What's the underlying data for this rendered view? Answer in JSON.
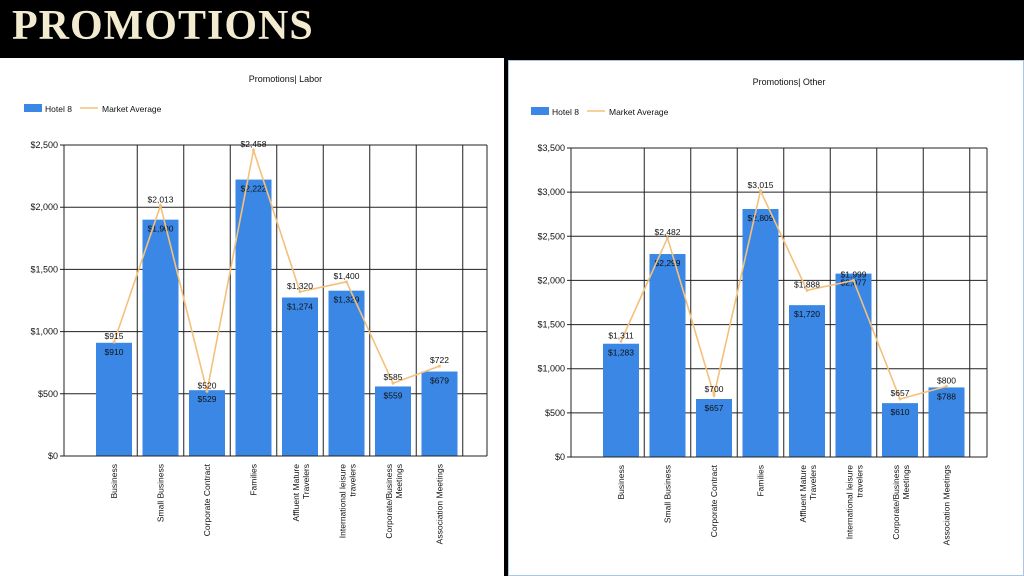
{
  "header": {
    "title": "PROMOTIONS"
  },
  "colors": {
    "bar": "#3a87e5",
    "line": "#f5c07a",
    "grid": "#202020",
    "header_bg": "#000000",
    "title_text": "#f3ebd0"
  },
  "chart_data": [
    {
      "type": "bar",
      "title": "Promotions| Labor",
      "xlabel": "",
      "ylabel": "",
      "ylim": [
        0,
        2500
      ],
      "yticks": [
        0,
        500,
        1000,
        1500,
        2000,
        2500
      ],
      "ytick_labels": [
        "$0",
        "$500",
        "$1,000",
        "$1,500",
        "$2,000",
        "$2,500"
      ],
      "grid": true,
      "legend": "top-left",
      "categories": [
        "Business",
        "Small Business",
        "Corporate Contract",
        "Families",
        "Affluent Mature Travelers",
        "International leisure travelers",
        "Corporate/Business Meetings",
        "Association Meetings"
      ],
      "series": [
        {
          "name": "Hotel 8",
          "kind": "bar",
          "values": [
            910,
            1900,
            529,
            2222,
            1274,
            1329,
            559,
            679
          ],
          "labels": [
            "$910",
            "$1,900",
            "$529",
            "$2,222",
            "$1,274",
            "$1,329",
            "$559",
            "$679"
          ]
        },
        {
          "name": "Market Average",
          "kind": "line",
          "values": [
            915,
            2013,
            520,
            2458,
            1320,
            1400,
            585,
            722
          ],
          "labels": [
            "$915",
            "$2,013",
            "$520",
            "$2,458",
            "$1,320",
            "$1,400",
            "$585",
            "$722"
          ]
        }
      ]
    },
    {
      "type": "bar",
      "title": "Promotions| Other",
      "xlabel": "",
      "ylabel": "",
      "ylim": [
        0,
        3500
      ],
      "yticks": [
        0,
        500,
        1000,
        1500,
        2000,
        2500,
        3000,
        3500
      ],
      "ytick_labels": [
        "$0",
        "$500",
        "$1,000",
        "$1,500",
        "$2,000",
        "$2,500",
        "$3,000",
        "$3,500"
      ],
      "grid": true,
      "legend": "top-left",
      "categories": [
        "Business",
        "Small Business",
        "Corporate Contract",
        "Families",
        "Affluent Mature Travelers",
        "International leisure travelers",
        "Corporate/Business Meetings",
        "Association Meetings"
      ],
      "series": [
        {
          "name": "Hotel 8",
          "kind": "bar",
          "values": [
            1283,
            2299,
            657,
            2809,
            1720,
            2077,
            610,
            788
          ],
          "labels": [
            "$1,283",
            "$2,299",
            "$657",
            "$2,809",
            "$1,720",
            "$2,077",
            "$610",
            "$788"
          ]
        },
        {
          "name": "Market Average",
          "kind": "line",
          "values": [
            1311,
            2482,
            700,
            3015,
            1888,
            1999,
            657,
            800
          ],
          "labels": [
            "$1,311",
            "$2,482",
            "$700",
            "$3,015",
            "$1,888",
            "$1,999",
            "$657",
            "$800"
          ]
        }
      ]
    }
  ]
}
